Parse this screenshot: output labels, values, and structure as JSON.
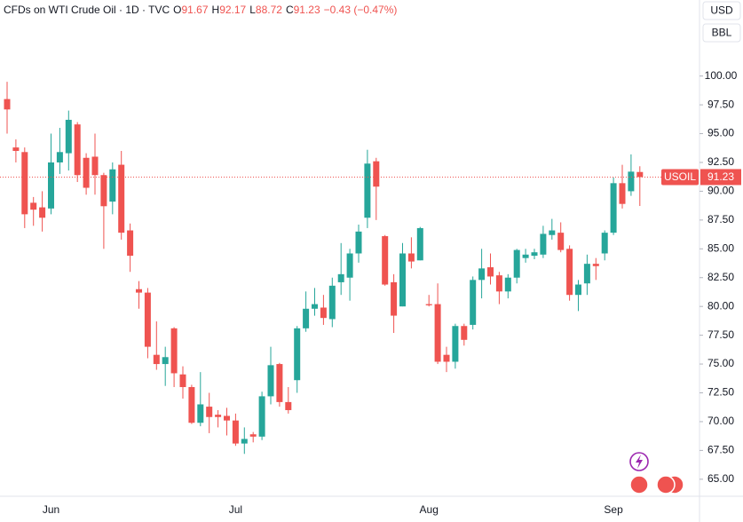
{
  "chart_data": {
    "type": "candlestick",
    "title": "CFDs on WTI Crude Oil · 1D · TVC",
    "ohlc_legend": [
      {
        "label": "O",
        "value": 91.67
      },
      {
        "label": "H",
        "value": 92.17
      },
      {
        "label": "L",
        "value": 88.72
      },
      {
        "label": "C",
        "value": 91.23
      }
    ],
    "change_text": "−0.43 (−0.47%)",
    "currency": "USD",
    "unit": "BBL",
    "last_price_symbol": "USOIL",
    "last_price": 91.23,
    "up_color": "#26a69a",
    "down_color": "#ef5350",
    "grid": false,
    "ylim": [
      63.6,
      106.6
    ],
    "yticks": [
      {
        "value": 65,
        "label": "65.00"
      },
      {
        "value": 67.5,
        "label": "67.50"
      },
      {
        "value": 70,
        "label": "70.00"
      },
      {
        "value": 72.5,
        "label": "72.50"
      },
      {
        "value": 75,
        "label": "75.00"
      },
      {
        "value": 77.5,
        "label": "77.50"
      },
      {
        "value": 80,
        "label": "80.00"
      },
      {
        "value": 82.5,
        "label": "82.50"
      },
      {
        "value": 85,
        "label": "85.00"
      },
      {
        "value": 87.5,
        "label": "87.50"
      },
      {
        "value": 90,
        "label": "90.00"
      },
      {
        "value": 92.5,
        "label": "92.50"
      },
      {
        "value": 95,
        "label": "95.00"
      },
      {
        "value": 97.5,
        "label": "97.50"
      },
      {
        "value": 100,
        "label": "100.00"
      }
    ],
    "categories": [
      null,
      null,
      null,
      null,
      null,
      "Jun",
      null,
      null,
      null,
      null,
      null,
      null,
      null,
      null,
      null,
      null,
      null,
      null,
      null,
      null,
      null,
      null,
      null,
      null,
      null,
      null,
      "Jul",
      null,
      null,
      null,
      null,
      null,
      null,
      null,
      null,
      null,
      null,
      null,
      null,
      null,
      null,
      null,
      null,
      null,
      null,
      null,
      null,
      null,
      "Aug",
      null,
      null,
      null,
      null,
      null,
      null,
      null,
      null,
      null,
      null,
      null,
      null,
      null,
      null,
      null,
      null,
      null,
      null,
      null,
      null,
      "Sep",
      null,
      null,
      null
    ],
    "open": [
      98.0,
      93.8,
      93.4,
      89.0,
      88.6,
      88.5,
      92.5,
      93.3,
      95.8,
      92.9,
      93.0,
      91.4,
      89.1,
      92.3,
      86.6,
      81.5,
      81.2,
      75.8,
      75.0,
      78.1,
      74.1,
      73.0,
      69.9,
      71.3,
      70.6,
      70.5,
      70.1,
      68.1,
      68.9,
      68.7,
      72.2,
      75.0,
      71.7,
      73.6,
      78.1,
      79.8,
      79.9,
      78.9,
      82.1,
      82.5,
      84.6,
      87.7,
      92.6,
      86.1,
      82.1,
      80.0,
      84.6,
      84.0,
      80.2,
      80.2,
      75.8,
      75.2,
      78.3,
      78.4,
      82.3,
      83.4,
      82.7,
      81.3,
      82.5,
      84.2,
      84.4,
      84.5,
      86.2,
      86.4,
      85.0,
      81.0,
      82.0,
      83.7,
      84.6,
      86.4,
      90.7,
      90.0,
      91.67
    ],
    "high": [
      99.5,
      94.5,
      93.8,
      89.5,
      90.0,
      95.0,
      95.5,
      97.0,
      96.0,
      93.3,
      95.0,
      91.6,
      92.5,
      93.5,
      87.2,
      82.2,
      81.6,
      78.7,
      76.5,
      78.2,
      74.8,
      73.2,
      74.3,
      72.5,
      71.0,
      71.2,
      70.7,
      69.5,
      69.1,
      72.6,
      76.5,
      75.1,
      73.0,
      78.3,
      81.3,
      81.6,
      81.0,
      82.5,
      85.5,
      85.0,
      87.1,
      93.6,
      92.9,
      86.2,
      82.8,
      85.5,
      86.0,
      86.9,
      81.0,
      82.0,
      76.5,
      78.5,
      78.5,
      82.6,
      85.0,
      84.6,
      83.0,
      82.8,
      85.0,
      85.0,
      85.0,
      87.0,
      87.6,
      87.3,
      85.3,
      82.3,
      84.5,
      84.2,
      86.6,
      91.2,
      92.3,
      93.2,
      92.17
    ],
    "low": [
      95.0,
      92.5,
      86.8,
      87.0,
      86.5,
      88.0,
      91.5,
      91.8,
      90.8,
      89.7,
      89.7,
      85.0,
      88.0,
      85.8,
      83.0,
      79.8,
      75.5,
      74.5,
      73.1,
      73.0,
      72.0,
      69.8,
      69.6,
      69.0,
      69.5,
      68.8,
      67.9,
      67.2,
      68.2,
      68.4,
      71.5,
      71.3,
      70.7,
      72.5,
      77.8,
      79.2,
      78.4,
      78.2,
      81.0,
      80.5,
      83.8,
      86.8,
      87.5,
      81.8,
      77.7,
      80.0,
      83.3,
      84.0,
      80.0,
      75.0,
      74.3,
      74.6,
      76.6,
      78.0,
      80.7,
      81.9,
      80.2,
      80.7,
      82.0,
      83.8,
      84.1,
      84.2,
      85.8,
      84.7,
      80.5,
      79.6,
      81.0,
      82.3,
      84.0,
      86.2,
      88.5,
      89.6,
      88.72
    ],
    "close": [
      97.1,
      93.5,
      88.0,
      88.4,
      87.7,
      92.5,
      93.4,
      96.2,
      91.4,
      90.3,
      91.4,
      88.7,
      91.9,
      86.4,
      84.4,
      81.2,
      76.5,
      75.0,
      75.6,
      74.2,
      73.0,
      69.9,
      71.5,
      70.4,
      70.4,
      70.1,
      68.1,
      68.5,
      68.7,
      72.2,
      74.9,
      71.7,
      71.0,
      78.1,
      79.8,
      80.2,
      79.0,
      81.8,
      82.8,
      84.6,
      86.5,
      92.4,
      90.4,
      81.9,
      79.2,
      84.6,
      83.9,
      86.8,
      80.1,
      75.2,
      75.2,
      78.3,
      77.1,
      82.3,
      83.3,
      82.6,
      81.3,
      82.5,
      84.9,
      84.5,
      84.7,
      86.3,
      86.6,
      84.9,
      81.0,
      81.9,
      83.7,
      83.5,
      86.4,
      90.7,
      88.9,
      91.7,
      91.23
    ]
  }
}
